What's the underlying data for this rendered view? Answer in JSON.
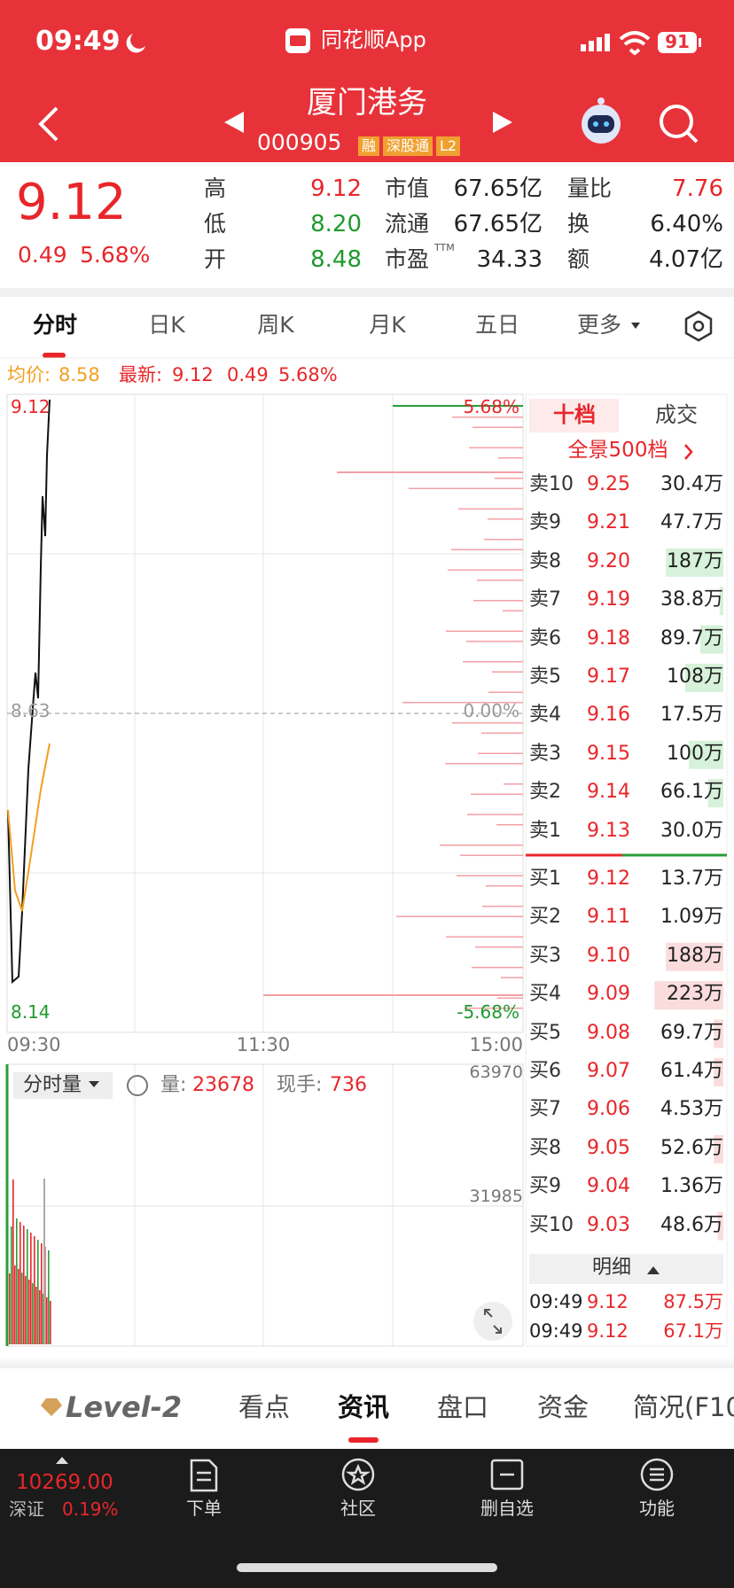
{
  "status": {
    "time": "09:49",
    "app": "同花顺App",
    "battery": "91"
  },
  "header": {
    "title": "厦门港务",
    "code": "000905",
    "badges": [
      "融",
      "深股通",
      "L2"
    ]
  },
  "quote": {
    "price": "9.12",
    "change": "0.49",
    "change_pct": "5.68%",
    "stats": [
      [
        {
          "label": "高",
          "value": "9.12"
        },
        {
          "label": "低",
          "value": "8.20"
        },
        {
          "label": "开",
          "value": "8.48"
        }
      ],
      [
        {
          "label": "市值",
          "value": "67.65亿"
        },
        {
          "label": "流通",
          "value": "67.65亿"
        },
        {
          "label": "市盈",
          "value": "34.33",
          "note": "TTM"
        }
      ],
      [
        {
          "label": "量比",
          "value": "7.76"
        },
        {
          "label": "换",
          "value": "6.40%"
        },
        {
          "label": "额",
          "value": "4.07亿"
        }
      ]
    ]
  },
  "tabs": [
    "分时",
    "日K",
    "周K",
    "月K",
    "五日",
    "更多"
  ],
  "intraday": {
    "avg_label": "均价:",
    "avg": "8.58",
    "latest_label": "最新:",
    "latest": "9.12",
    "change": "0.49",
    "change_pct": "5.68%",
    "high": "9.12",
    "high_pct": "5.68%",
    "prev_close": "8.63",
    "zero_pct": "0.00%",
    "low": "8.14",
    "low_pct": "-5.68%",
    "times": [
      "09:30",
      "11:30",
      "15:00"
    ]
  },
  "volume": {
    "selector": "分时量",
    "volume_label": "量:",
    "volume": "23678",
    "hand_label": "现手:",
    "hand": "736",
    "max": "63970",
    "mid": "31985"
  },
  "order_book": {
    "tabs": [
      "十档",
      "成交"
    ],
    "panorama": "全景500档",
    "asks": [
      {
        "label": "卖10",
        "price": "9.25",
        "volume": "30.4万"
      },
      {
        "label": "卖9",
        "price": "9.21",
        "volume": "47.7万"
      },
      {
        "label": "卖8",
        "price": "9.20",
        "volume": "187万"
      },
      {
        "label": "卖7",
        "price": "9.19",
        "volume": "38.8万"
      },
      {
        "label": "卖6",
        "price": "9.18",
        "volume": "89.7万"
      },
      {
        "label": "卖5",
        "price": "9.17",
        "volume": "108万"
      },
      {
        "label": "卖4",
        "price": "9.16",
        "volume": "17.5万"
      },
      {
        "label": "卖3",
        "price": "9.15",
        "volume": "100万"
      },
      {
        "label": "卖2",
        "price": "9.14",
        "volume": "66.1万"
      },
      {
        "label": "卖1",
        "price": "9.13",
        "volume": "30.0万"
      }
    ],
    "bids": [
      {
        "label": "买1",
        "price": "9.12",
        "volume": "13.7万"
      },
      {
        "label": "买2",
        "price": "9.11",
        "volume": "1.09万"
      },
      {
        "label": "买3",
        "price": "9.10",
        "volume": "188万"
      },
      {
        "label": "买4",
        "price": "9.09",
        "volume": "223万"
      },
      {
        "label": "买5",
        "price": "9.08",
        "volume": "69.7万"
      },
      {
        "label": "买6",
        "price": "9.07",
        "volume": "61.4万"
      },
      {
        "label": "买7",
        "price": "9.06",
        "volume": "4.53万"
      },
      {
        "label": "买8",
        "price": "9.05",
        "volume": "52.6万"
      },
      {
        "label": "买9",
        "price": "9.04",
        "volume": "1.36万"
      },
      {
        "label": "买10",
        "price": "9.03",
        "volume": "48.6万"
      }
    ],
    "detail": "明细",
    "trades": [
      {
        "time": "09:49",
        "price": "9.12",
        "volume": "87.5万"
      },
      {
        "time": "09:49",
        "price": "9.12",
        "volume": "67.1万"
      }
    ]
  },
  "bottom_tabs": [
    "Level-2",
    "看点",
    "资讯",
    "盘口",
    "资金",
    "简况(F10"
  ],
  "index": {
    "value": "10269.00",
    "name": "深证",
    "change_pct": "0.19%"
  },
  "nav": [
    "下单",
    "社区",
    "删自选",
    "功能"
  ]
}
